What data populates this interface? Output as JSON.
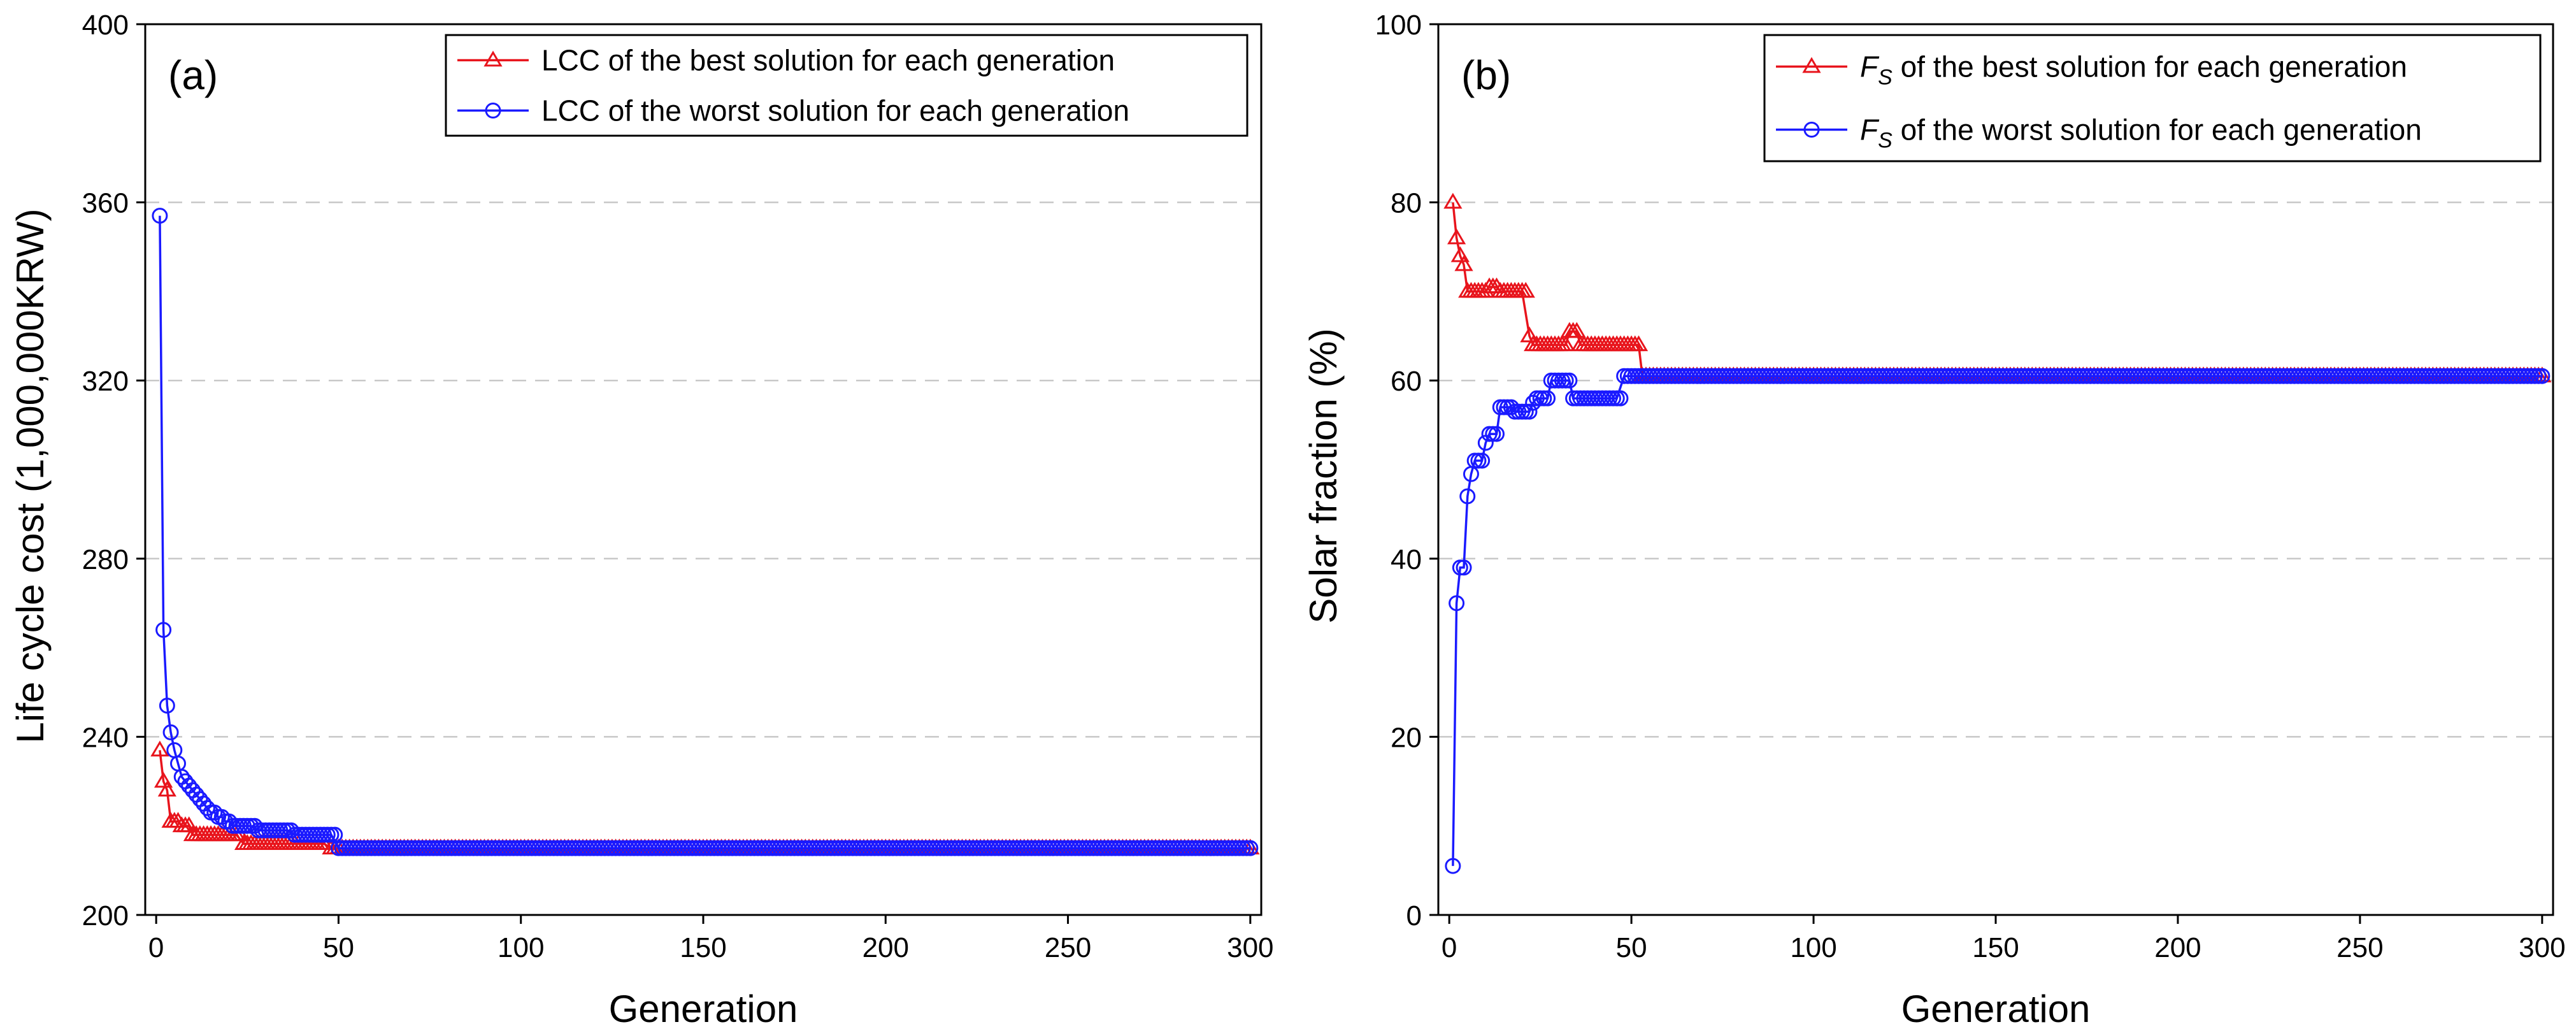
{
  "colors": {
    "best": "#e8141c",
    "worst": "#1a1aff"
  },
  "chart_data": [
    {
      "type": "line",
      "panel_label": "(a)",
      "title": "",
      "xlabel": "Generation",
      "ylabel": "Life cycle cost (1,000,000KRW)",
      "xlim": [
        -3,
        303
      ],
      "ylim": [
        200,
        400
      ],
      "xticks": [
        0,
        50,
        100,
        150,
        200,
        250,
        300
      ],
      "yticks": [
        200,
        240,
        280,
        320,
        360,
        400
      ],
      "gridlines_y": [
        240,
        280,
        320,
        360
      ],
      "legend": {
        "position": "top-right"
      },
      "series": [
        {
          "key": "best",
          "name": "LCC of the best solution for each generation",
          "legend_parts": [
            {
              "text": "LCC of the best solution for each generation",
              "italic": false
            }
          ],
          "marker": "triangle",
          "points": [
            [
              1,
              237
            ],
            [
              2,
              230
            ],
            [
              3,
              228
            ],
            [
              4,
              221
            ],
            [
              5,
              221
            ],
            [
              6,
              221
            ],
            [
              7,
              220
            ],
            [
              8,
              220
            ],
            [
              9,
              220
            ],
            [
              10,
              218
            ],
            [
              12,
              218
            ],
            [
              14,
              218
            ],
            [
              16,
              218
            ],
            [
              18,
              218
            ],
            [
              20,
              218
            ],
            [
              22,
              218
            ],
            [
              24,
              216
            ],
            [
              26,
              216
            ],
            [
              28,
              216
            ],
            [
              30,
              216
            ],
            [
              32,
              216
            ],
            [
              34,
              216
            ],
            [
              36,
              216
            ],
            [
              38,
              216
            ],
            [
              40,
              216
            ],
            [
              42,
              216
            ],
            [
              44,
              216
            ],
            [
              46,
              216
            ],
            [
              48,
              215
            ],
            [
              300,
              215
            ]
          ]
        },
        {
          "key": "worst",
          "name": "LCC of the worst solution for each generation",
          "legend_parts": [
            {
              "text": "LCC of the worst solution for each generation",
              "italic": false
            }
          ],
          "marker": "circle",
          "points": [
            [
              1,
              357
            ],
            [
              2,
              264
            ],
            [
              3,
              247
            ],
            [
              4,
              241
            ],
            [
              5,
              237
            ],
            [
              6,
              234
            ],
            [
              7,
              231
            ],
            [
              8,
              230
            ],
            [
              9,
              229
            ],
            [
              10,
              228
            ],
            [
              11,
              227
            ],
            [
              12,
              226
            ],
            [
              13,
              225
            ],
            [
              14,
              224
            ],
            [
              15,
              223
            ],
            [
              16,
              223
            ],
            [
              17,
              222
            ],
            [
              18,
              222
            ],
            [
              19,
              221
            ],
            [
              20,
              221
            ],
            [
              21,
              220
            ],
            [
              22,
              220
            ],
            [
              24,
              220
            ],
            [
              26,
              220
            ],
            [
              28,
              219
            ],
            [
              30,
              219
            ],
            [
              32,
              219
            ],
            [
              34,
              219
            ],
            [
              36,
              219
            ],
            [
              38,
              218
            ],
            [
              40,
              218
            ],
            [
              42,
              218
            ],
            [
              44,
              218
            ],
            [
              46,
              218
            ],
            [
              48,
              218
            ],
            [
              50,
              215
            ],
            [
              300,
              215
            ]
          ]
        }
      ]
    },
    {
      "type": "line",
      "panel_label": "(b)",
      "title": "",
      "xlabel": "Generation",
      "ylabel": "Solar fraction (%)",
      "xlim": [
        -3,
        303
      ],
      "ylim": [
        0,
        100
      ],
      "xticks": [
        0,
        50,
        100,
        150,
        200,
        250,
        300
      ],
      "yticks": [
        0,
        20,
        40,
        60,
        80,
        100
      ],
      "gridlines_y": [
        20,
        40,
        60,
        80
      ],
      "legend": {
        "position": "top-right"
      },
      "series": [
        {
          "key": "best",
          "name": "FS of the best solution for each generation",
          "legend_parts": [
            {
              "text": "F",
              "italic": true
            },
            {
              "text": "S",
              "italic": true,
              "sub": true
            },
            {
              "text": " of the best solution for each generation",
              "italic": false
            }
          ],
          "marker": "triangle",
          "points": [
            [
              1,
              80
            ],
            [
              2,
              76
            ],
            [
              3,
              74
            ],
            [
              4,
              73
            ],
            [
              5,
              70
            ],
            [
              6,
              70
            ],
            [
              8,
              70
            ],
            [
              10,
              70
            ],
            [
              11,
              70.5
            ],
            [
              12,
              70.5
            ],
            [
              13,
              70.5
            ],
            [
              14,
              70
            ],
            [
              16,
              70
            ],
            [
              18,
              70
            ],
            [
              20,
              70
            ],
            [
              22,
              65
            ],
            [
              23,
              64
            ],
            [
              24,
              64
            ],
            [
              26,
              64
            ],
            [
              28,
              64
            ],
            [
              30,
              64
            ],
            [
              32,
              64
            ],
            [
              33,
              65.5
            ],
            [
              34,
              65.5
            ],
            [
              35,
              65.5
            ],
            [
              36,
              64
            ],
            [
              38,
              64
            ],
            [
              40,
              64
            ],
            [
              42,
              64
            ],
            [
              44,
              64
            ],
            [
              46,
              64
            ],
            [
              48,
              64
            ],
            [
              50,
              64
            ],
            [
              52,
              64
            ],
            [
              53,
              60.5
            ],
            [
              300,
              60.5
            ]
          ]
        },
        {
          "key": "worst",
          "name": "FS of the worst solution for each generation",
          "legend_parts": [
            {
              "text": "F",
              "italic": true
            },
            {
              "text": "S",
              "italic": true,
              "sub": true
            },
            {
              "text": " of the worst solution for each generation",
              "italic": false
            }
          ],
          "marker": "circle",
          "points": [
            [
              1,
              5.5
            ],
            [
              2,
              35
            ],
            [
              3,
              39
            ],
            [
              4,
              39
            ],
            [
              5,
              47
            ],
            [
              6,
              49.5
            ],
            [
              7,
              51
            ],
            [
              8,
              51
            ],
            [
              9,
              51
            ],
            [
              10,
              53
            ],
            [
              11,
              54
            ],
            [
              12,
              54
            ],
            [
              13,
              54
            ],
            [
              14,
              57
            ],
            [
              15,
              57
            ],
            [
              16,
              57
            ],
            [
              17,
              57
            ],
            [
              18,
              56.5
            ],
            [
              19,
              56.5
            ],
            [
              20,
              56.5
            ],
            [
              21,
              56.5
            ],
            [
              22,
              56.5
            ],
            [
              23,
              57.5
            ],
            [
              24,
              58
            ],
            [
              25,
              58
            ],
            [
              26,
              58
            ],
            [
              27,
              58
            ],
            [
              28,
              60
            ],
            [
              29,
              60
            ],
            [
              30,
              60
            ],
            [
              31,
              60
            ],
            [
              32,
              60
            ],
            [
              33,
              60
            ],
            [
              34,
              58
            ],
            [
              36,
              58
            ],
            [
              38,
              58
            ],
            [
              40,
              58
            ],
            [
              42,
              58
            ],
            [
              44,
              58
            ],
            [
              46,
              58
            ],
            [
              48,
              60.5
            ],
            [
              300,
              60.5
            ]
          ]
        }
      ]
    }
  ]
}
